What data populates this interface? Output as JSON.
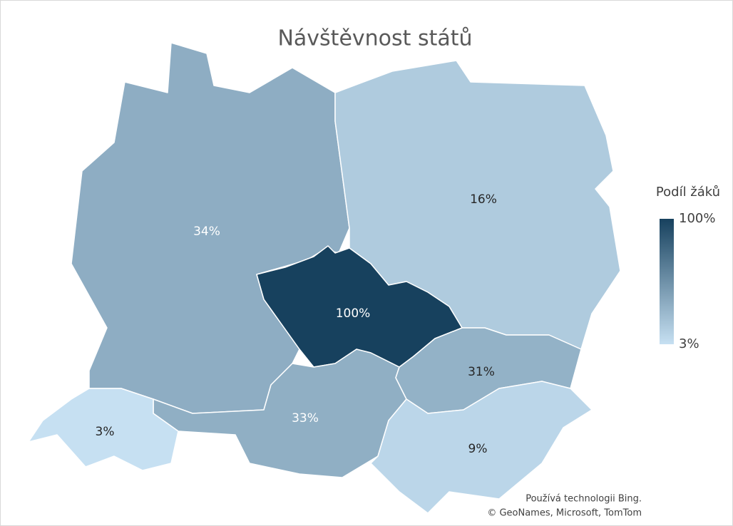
{
  "chart_data": {
    "type": "choropleth",
    "title": "Návštěvnost států",
    "values": [
      34,
      16,
      100,
      33,
      31,
      3,
      9
    ],
    "value_labels": [
      "34%",
      "16%",
      "100%",
      "33%",
      "31%",
      "3%",
      "9%"
    ],
    "legend_title": "Podíl žáků",
    "colorbar": {
      "colors": [
        "#c6e0f2",
        "#17415e"
      ],
      "ticks": [
        {
          "value": 100,
          "label": "100%"
        },
        {
          "value": 3,
          "label": "3%"
        }
      ]
    },
    "attribution": [
      "Používá technologii Bing.",
      "© GeoNames, Microsoft, TomTom"
    ]
  }
}
